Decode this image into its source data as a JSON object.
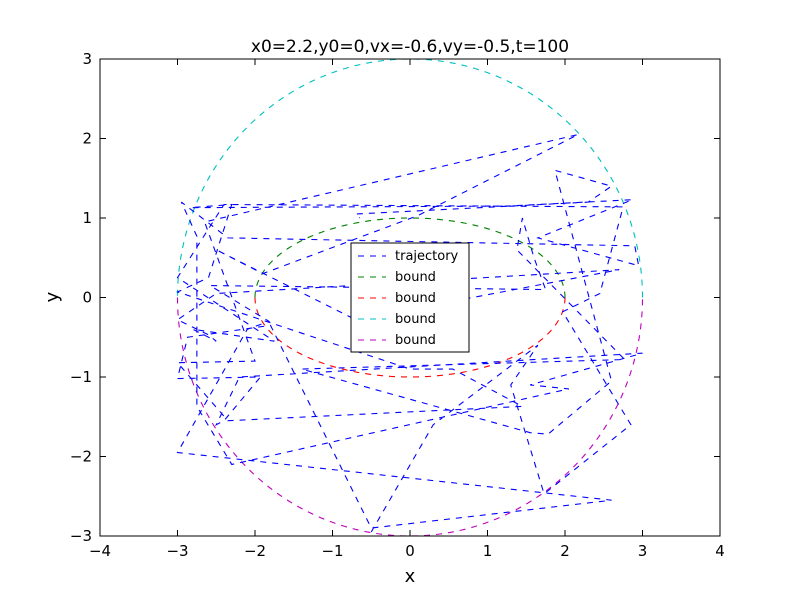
{
  "chart_data": {
    "type": "line",
    "title": "x0=2.2,y0=0,vx=-0.6,vy=-0.5,t=100",
    "xlabel": "x",
    "ylabel": "y",
    "xlim": [
      -4,
      4
    ],
    "ylim": [
      -3,
      3
    ],
    "xticks": [
      -4,
      -3,
      -2,
      -1,
      0,
      1,
      2,
      3,
      4
    ],
    "yticks": [
      -3,
      -2,
      -1,
      0,
      1,
      2,
      3
    ],
    "grid": false,
    "legend_position": "center",
    "series": [
      {
        "name": "trajectory",
        "color": "#0000ff",
        "style": "dashed",
        "x": [
          -0.5,
          0.3,
          1.65,
          1.3,
          1.73,
          2.85,
          1.97,
          2.45,
          2.75,
          -2.4,
          -3.0,
          -1.75,
          -2.8,
          -2.5,
          -2.6,
          -3.0,
          -2.5,
          2.7,
          -0.7,
          -2.5,
          -1.9,
          0.1,
          2.17,
          -2.65,
          -2.0,
          -3.0,
          -2.35,
          1.45,
          0.55,
          0.0,
          -3.0,
          -2.6,
          -2.3,
          -2.83,
          1.25,
          2.87,
          1.65,
          2.95,
          2.9,
          -2.35,
          -2.95,
          -2.75,
          -2.75,
          -2.3,
          2.05,
          1.55,
          3.0,
          -2.2,
          -2.5,
          -2.4,
          -1.93,
          -3.0,
          -2.87,
          -1.8,
          -0.5,
          2.6,
          -3.0,
          -2.1,
          -1.82,
          -2.58,
          1.75,
          1.6,
          1.45,
          1.38,
          2.77,
          -1.4,
          1.55,
          1.78,
          2.6,
          1.87,
          2.6,
          2.3,
          -0.7,
          -0.65
        ],
        "y": [
          -2.95,
          -1.6,
          -0.6,
          -1.1,
          -2.47,
          -1.6,
          -0.18,
          0.05,
          1.14,
          1.17,
          0.25,
          -0.55,
          -0.4,
          -0.55,
          -0.47,
          -0.28,
          0.05,
          0.35,
          -0.28,
          0.6,
          0.3,
          1.03,
          2.05,
          0.95,
          -0.8,
          -0.82,
          -1.55,
          -1.37,
          -0.9,
          -0.9,
          0.07,
          0.25,
          1.17,
          1.13,
          1.15,
          1.23,
          0.75,
          0.4,
          0.65,
          0.75,
          1.2,
          0.77,
          -1.37,
          -2.1,
          -1.15,
          -1.1,
          -0.7,
          -1.0,
          -1.6,
          -1.55,
          -1.0,
          -1.02,
          -0.5,
          -0.35,
          -2.9,
          -2.55,
          -1.95,
          -0.4,
          -0.3,
          0.15,
          0.1,
          0.5,
          1.0,
          0.6,
          -0.78,
          -0.9,
          -1.7,
          -1.72,
          -1.05,
          1.6,
          1.4,
          1.2,
          1.05,
          1.0
        ]
      },
      {
        "name": "bound",
        "color": "#008000",
        "style": "dashed",
        "shape": "upper half of ellipse a=2, b=1"
      },
      {
        "name": "bound",
        "color": "#ff0000",
        "style": "dashed",
        "shape": "lower half of ellipse a=2, b=1"
      },
      {
        "name": "bound",
        "color": "#00bfbf",
        "style": "dashed",
        "shape": "upper half of circle r=3"
      },
      {
        "name": "bound",
        "color": "#bf00bf",
        "style": "dashed",
        "shape": "lower half of circle r=3"
      }
    ]
  }
}
